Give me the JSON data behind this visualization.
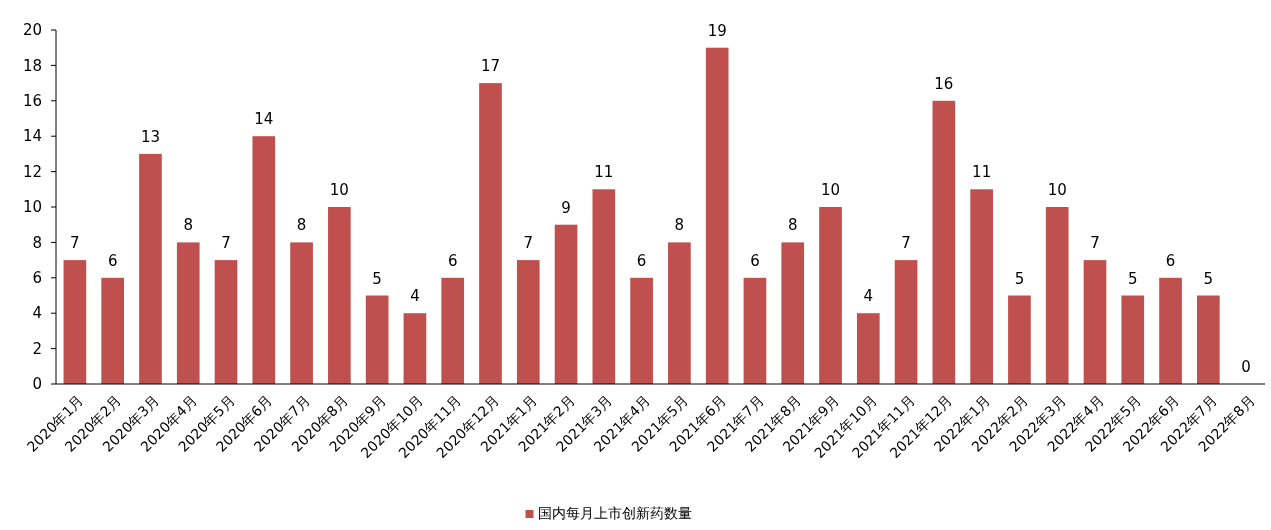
{
  "chart_data": {
    "type": "bar",
    "categories": [
      "2020年1月",
      "2020年2月",
      "2020年3月",
      "2020年4月",
      "2020年5月",
      "2020年6月",
      "2020年7月",
      "2020年8月",
      "2020年9月",
      "2020年10月",
      "2020年11月",
      "2020年12月",
      "2021年1月",
      "2021年2月",
      "2021年3月",
      "2021年4月",
      "2021年5月",
      "2021年6月",
      "2021年7月",
      "2021年8月",
      "2021年9月",
      "2021年10月",
      "2021年11月",
      "2021年12月",
      "2022年1月",
      "2022年2月",
      "2022年3月",
      "2022年4月",
      "2022年5月",
      "2022年6月",
      "2022年7月",
      "2022年8月"
    ],
    "series": [
      {
        "name": "国内每月上市创新药数量",
        "color": "#c0504d",
        "values": [
          7,
          6,
          13,
          8,
          7,
          14,
          8,
          10,
          5,
          4,
          6,
          17,
          7,
          9,
          11,
          6,
          8,
          19,
          6,
          8,
          10,
          4,
          7,
          16,
          11,
          5,
          10,
          7,
          5,
          6,
          5,
          0
        ]
      }
    ],
    "ylim": [
      0,
      20
    ],
    "yticks": [
      0,
      2,
      4,
      6,
      8,
      10,
      12,
      14,
      16,
      18,
      20
    ],
    "data_labels": true,
    "legend": "bottom"
  }
}
